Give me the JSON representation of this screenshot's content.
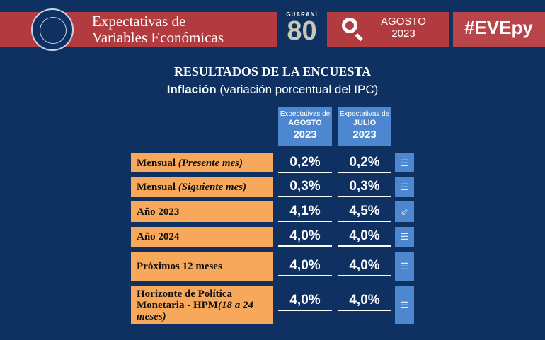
{
  "header": {
    "title_line1": "Expectativas de",
    "title_line2": "Variables Económicas",
    "anniversary_logo": "GUARANÍ 80",
    "month": "AGOSTO",
    "year": "2023",
    "hashtag": "#EVEpy"
  },
  "section": {
    "title": "RESULTADOS DE LA ENCUESTA",
    "subtitle_bold": "Inflación",
    "subtitle_rest": " (variación porcentual del IPC)"
  },
  "columns": [
    {
      "prefix": "Expectativas de",
      "month": "AGOSTO",
      "year": "2023"
    },
    {
      "prefix": "Expectativas de",
      "month": "JULIO",
      "year": "2023"
    }
  ],
  "rows": [
    {
      "label": "Mensual ",
      "label_italic": "(Presente mes)",
      "agosto": "0,2%",
      "julio": "0,2%",
      "trend": "equal-icon"
    },
    {
      "label": "Mensual ",
      "label_italic": "(Siguiente mes)",
      "agosto": "0,3%",
      "julio": "0,3%",
      "trend": "equal-icon"
    },
    {
      "label": "Año 2023",
      "label_italic": "",
      "agosto": "4,1%",
      "julio": "4,5%",
      "trend": "arrow-down-left-icon"
    },
    {
      "label": "Año 2024",
      "label_italic": "",
      "agosto": "4,0%",
      "julio": "4,0%",
      "trend": "equal-icon"
    },
    {
      "label": "Próximos 12 meses",
      "label_italic": "",
      "agosto": "4,0%",
      "julio": "4,0%",
      "trend": "equal-icon"
    },
    {
      "label": "Horizonte de Política Monetaria - HPM",
      "label_italic": "(18 a 24 meses)",
      "agosto": "4,0%",
      "julio": "4,0%",
      "trend": "equal-icon"
    }
  ],
  "colors": {
    "background": "#0e3162",
    "band": "#b23b40",
    "label": "#f7a85a",
    "accent": "#4d87cf"
  }
}
